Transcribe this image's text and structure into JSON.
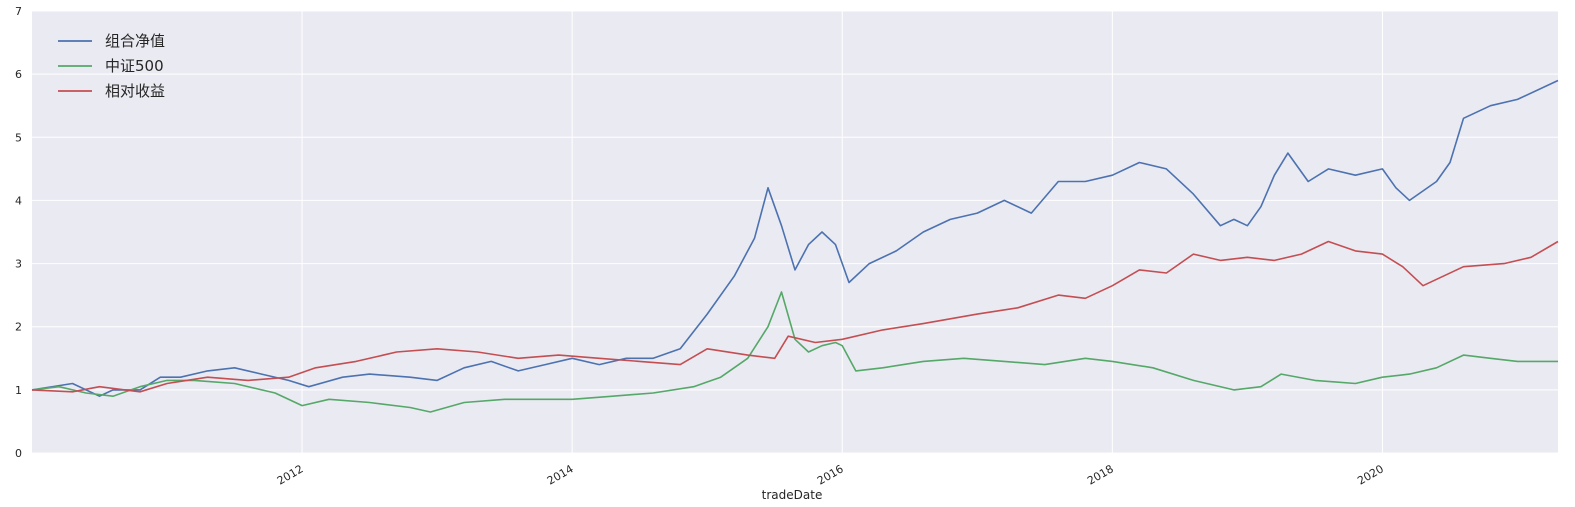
{
  "chart_data": {
    "type": "line",
    "title": "",
    "xlabel": "tradeDate",
    "ylabel": "",
    "xlim": [
      2010.0,
      2021.3
    ],
    "ylim": [
      0,
      7
    ],
    "x_ticks": [
      2012,
      2014,
      2016,
      2018,
      2020
    ],
    "x_tick_labels": [
      "2012",
      "2014",
      "2016",
      "2018",
      "2020"
    ],
    "y_ticks": [
      0,
      1,
      2,
      3,
      4,
      5,
      6,
      7
    ],
    "y_tick_labels": [
      "0",
      "1",
      "2",
      "3",
      "4",
      "5",
      "6",
      "7"
    ],
    "grid": true,
    "legend_position": "top-left",
    "background": "#eaeaf2",
    "series": [
      {
        "name": "组合净值",
        "color": "#4c72b0",
        "x": [
          2010.0,
          2010.3,
          2010.5,
          2010.6,
          2010.8,
          2010.95,
          2011.1,
          2011.3,
          2011.5,
          2011.7,
          2011.9,
          2012.05,
          2012.3,
          2012.5,
          2012.8,
          2013.0,
          2013.2,
          2013.4,
          2013.6,
          2013.8,
          2014.0,
          2014.2,
          2014.4,
          2014.6,
          2014.8,
          2015.0,
          2015.2,
          2015.35,
          2015.45,
          2015.55,
          2015.65,
          2015.75,
          2015.85,
          2015.95,
          2016.05,
          2016.2,
          2016.4,
          2016.6,
          2016.8,
          2017.0,
          2017.2,
          2017.4,
          2017.6,
          2017.8,
          2018.0,
          2018.2,
          2018.4,
          2018.6,
          2018.8,
          2018.9,
          2019.0,
          2019.1,
          2019.2,
          2019.3,
          2019.45,
          2019.6,
          2019.8,
          2020.0,
          2020.1,
          2020.2,
          2020.4,
          2020.5,
          2020.6,
          2020.8,
          2021.0,
          2021.3
        ],
        "values": [
          1.0,
          1.1,
          0.9,
          1.0,
          1.0,
          1.2,
          1.2,
          1.3,
          1.35,
          1.25,
          1.15,
          1.05,
          1.2,
          1.25,
          1.2,
          1.15,
          1.35,
          1.45,
          1.3,
          1.4,
          1.5,
          1.4,
          1.5,
          1.5,
          1.65,
          2.2,
          2.8,
          3.4,
          4.2,
          3.6,
          2.9,
          3.3,
          3.5,
          3.3,
          2.7,
          3.0,
          3.2,
          3.5,
          3.7,
          3.8,
          4.0,
          3.8,
          4.3,
          4.3,
          4.4,
          4.6,
          4.5,
          4.1,
          3.6,
          3.7,
          3.6,
          3.9,
          4.4,
          4.75,
          4.3,
          4.5,
          4.4,
          4.5,
          4.2,
          4.0,
          4.3,
          4.6,
          5.3,
          5.5,
          5.6,
          5.9
        ]
      },
      {
        "name": "中证500",
        "color": "#55a868",
        "x": [
          2010.0,
          2010.2,
          2010.4,
          2010.6,
          2010.8,
          2011.0,
          2011.2,
          2011.5,
          2011.8,
          2012.0,
          2012.2,
          2012.5,
          2012.8,
          2012.95,
          2013.2,
          2013.5,
          2013.8,
          2014.0,
          2014.3,
          2014.6,
          2014.9,
          2015.1,
          2015.3,
          2015.45,
          2015.55,
          2015.65,
          2015.75,
          2015.85,
          2015.95,
          2016.0,
          2016.1,
          2016.3,
          2016.6,
          2016.9,
          2017.2,
          2017.5,
          2017.8,
          2018.0,
          2018.3,
          2018.6,
          2018.9,
          2019.1,
          2019.25,
          2019.5,
          2019.8,
          2020.0,
          2020.2,
          2020.4,
          2020.6,
          2020.8,
          2021.0,
          2021.3
        ],
        "values": [
          1.0,
          1.05,
          0.95,
          0.9,
          1.05,
          1.15,
          1.15,
          1.1,
          0.95,
          0.75,
          0.85,
          0.8,
          0.72,
          0.65,
          0.8,
          0.85,
          0.85,
          0.85,
          0.9,
          0.95,
          1.05,
          1.2,
          1.5,
          2.0,
          2.55,
          1.8,
          1.6,
          1.7,
          1.75,
          1.7,
          1.3,
          1.35,
          1.45,
          1.5,
          1.45,
          1.4,
          1.5,
          1.45,
          1.35,
          1.15,
          1.0,
          1.05,
          1.25,
          1.15,
          1.1,
          1.2,
          1.25,
          1.35,
          1.55,
          1.5,
          1.45,
          1.45
        ]
      },
      {
        "name": "相对收益",
        "color": "#c44e52",
        "x": [
          2010.0,
          2010.3,
          2010.5,
          2010.8,
          2011.0,
          2011.3,
          2011.6,
          2011.9,
          2012.1,
          2012.4,
          2012.7,
          2013.0,
          2013.3,
          2013.6,
          2013.9,
          2014.2,
          2014.5,
          2014.8,
          2015.0,
          2015.3,
          2015.5,
          2015.6,
          2015.8,
          2016.0,
          2016.3,
          2016.6,
          2017.0,
          2017.3,
          2017.6,
          2017.8,
          2018.0,
          2018.2,
          2018.4,
          2018.6,
          2018.8,
          2019.0,
          2019.2,
          2019.4,
          2019.6,
          2019.8,
          2020.0,
          2020.15,
          2020.3,
          2020.6,
          2020.9,
          2021.1,
          2021.3
        ],
        "values": [
          1.0,
          0.97,
          1.05,
          0.97,
          1.1,
          1.2,
          1.15,
          1.2,
          1.35,
          1.45,
          1.6,
          1.65,
          1.6,
          1.5,
          1.55,
          1.5,
          1.45,
          1.4,
          1.65,
          1.55,
          1.5,
          1.85,
          1.75,
          1.8,
          1.95,
          2.05,
          2.2,
          2.3,
          2.5,
          2.45,
          2.65,
          2.9,
          2.85,
          3.15,
          3.05,
          3.1,
          3.05,
          3.15,
          3.35,
          3.2,
          3.15,
          2.95,
          2.65,
          2.95,
          3.0,
          3.1,
          3.35
        ]
      }
    ]
  }
}
